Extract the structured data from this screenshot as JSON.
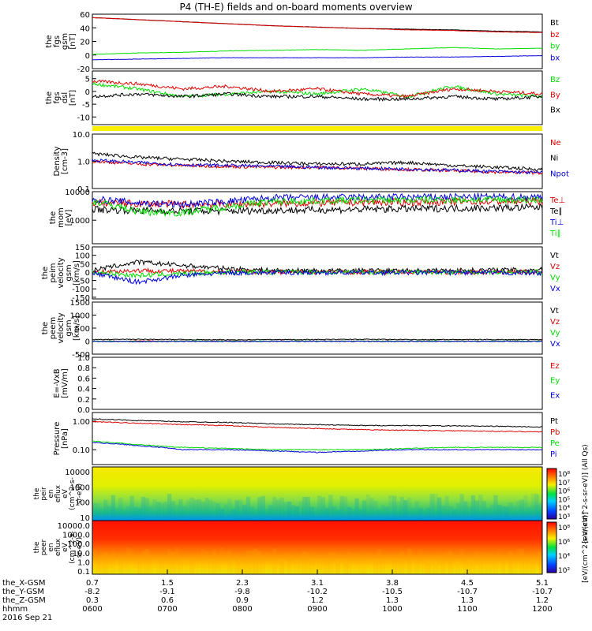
{
  "title": "P4 (TH-E) fields and on-board moments overview",
  "chart_data": {
    "type": "line",
    "title": "P4 (TH-E) fields and on-board moments overview",
    "x_axis": {
      "rows": [
        {
          "label": "the_X-GSM",
          "values": [
            "0.7",
            "1.5",
            "2.3",
            "3.1",
            "3.8",
            "4.5",
            "5.1"
          ]
        },
        {
          "label": "the_Y-GSM",
          "values": [
            "-8.2",
            "-9.1",
            "-9.8",
            "-10.2",
            "-10.5",
            "-10.7",
            "-10.7"
          ]
        },
        {
          "label": "the_Z-GSM",
          "values": [
            "0.3",
            "0.6",
            "0.9",
            "1.2",
            "1.3",
            "1.3",
            "1.2"
          ]
        },
        {
          "label": "hhmm",
          "values": [
            "0600",
            "0700",
            "0800",
            "0900",
            "1000",
            "1100",
            "1200"
          ]
        }
      ],
      "date": "2016 Sep 21"
    },
    "panels": [
      {
        "id": "fgs_gsm",
        "ylabel": [
          "the",
          "fgs",
          "gsm",
          "[nT]"
        ],
        "ylim": [
          -20,
          60
        ],
        "log": false,
        "ticks": [
          "60",
          "40",
          "20",
          "0",
          "-20"
        ],
        "series": [
          {
            "name": "Bt",
            "color": "#000000",
            "values": [
              55,
              52,
              49,
              46,
              43,
              41,
              39,
              38,
              37,
              35,
              34
            ]
          },
          {
            "name": "bz",
            "color": "#dd0000",
            "values": [
              55,
              52,
              49,
              46,
              43,
              41,
              39,
              37,
              36,
              34,
              33
            ]
          },
          {
            "name": "by",
            "color": "#00dd00",
            "values": [
              1,
              3,
              4,
              6,
              7,
              8,
              7,
              9,
              11,
              9,
              10
            ]
          },
          {
            "name": "bx",
            "color": "#0000dd",
            "values": [
              -7,
              -6,
              -5,
              -4,
              -4,
              -4,
              -4,
              -3,
              -3,
              -2,
              -1
            ]
          }
        ]
      },
      {
        "id": "fgs_dsl",
        "ylabel": [
          "the",
          "fgs",
          "dsl",
          "[nT]"
        ],
        "ylim": [
          -13,
          8
        ],
        "log": false,
        "ticks": [
          "5",
          "0",
          "-5",
          "-10"
        ],
        "series": [
          {
            "name": "Bz",
            "color": "#00dd00",
            "values": [
              3,
              1,
              -2,
              -1,
              0,
              -1,
              1,
              -2,
              2,
              -1,
              -2
            ]
          },
          {
            "name": "By",
            "color": "#dd0000",
            "values": [
              4,
              3,
              1,
              2,
              0,
              1,
              -1,
              -2,
              1,
              0,
              -1
            ]
          },
          {
            "name": "Bx",
            "color": "#000000",
            "values": [
              -2,
              -1,
              -2,
              -1,
              -2,
              -2,
              -3,
              -3,
              -2,
              -3,
              -2
            ]
          }
        ]
      },
      {
        "id": "density",
        "ylabel": [
          "Density",
          "[cm-3]"
        ],
        "ylim": [
          0.1,
          10
        ],
        "log": true,
        "ticks": [
          "10.0",
          "1.0",
          "0.1"
        ],
        "series": [
          {
            "name": "Ne",
            "color": "#dd0000",
            "values": [
              1.0,
              0.8,
              0.7,
              0.65,
              0.6,
              0.6,
              0.55,
              0.5,
              0.45,
              0.4,
              0.38
            ]
          },
          {
            "name": "Ni",
            "color": "#000000",
            "values": [
              1.9,
              1.4,
              1.2,
              1.0,
              0.9,
              0.8,
              0.8,
              0.9,
              0.7,
              0.6,
              0.5
            ]
          },
          {
            "name": "Npot",
            "color": "#0000dd",
            "values": [
              1.1,
              0.9,
              0.75,
              0.7,
              0.65,
              0.6,
              0.55,
              0.52,
              0.47,
              0.42,
              0.38
            ]
          }
        ]
      },
      {
        "id": "mom",
        "ylabel": [
          "the",
          "mom",
          "[eV]"
        ],
        "ylim": [
          150,
          10000
        ],
        "log": true,
        "ticks": [
          "10000",
          "1000"
        ],
        "series": [
          {
            "name": "Te⊥",
            "color": "#dd0000",
            "values": [
              4200,
              3800,
              3600,
              3600,
              3800,
              4000,
              4200,
              4300,
              4400,
              4500,
              4600
            ]
          },
          {
            "name": "Te∥",
            "color": "#000000",
            "values": [
              2400,
              2200,
              2100,
              2100,
              2200,
              2300,
              2400,
              2500,
              2600,
              2700,
              2800
            ]
          },
          {
            "name": "Ti⊥",
            "color": "#0000dd",
            "values": [
              5500,
              4000,
              3500,
              4500,
              6000,
              6200,
              6300,
              6400,
              6500,
              6500,
              6500
            ]
          },
          {
            "name": "Ti∥",
            "color": "#00dd00",
            "values": [
              4500,
              2000,
              1800,
              3000,
              4500,
              4800,
              5000,
              5100,
              5200,
              5200,
              5200
            ]
          }
        ]
      },
      {
        "id": "peim",
        "ylabel": [
          "the",
          "peim",
          "velocity",
          "gsm",
          "[km/s]"
        ],
        "ylim": [
          -160,
          150
        ],
        "log": false,
        "ticks": [
          "150",
          "100",
          "50",
          "0",
          "-50",
          "-100",
          "-150"
        ],
        "series": [
          {
            "name": "Vt",
            "color": "#000000",
            "values": [
              10,
              60,
              40,
              20,
              10,
              8,
              8,
              8,
              10,
              12,
              14
            ]
          },
          {
            "name": "Vz",
            "color": "#dd0000",
            "values": [
              0,
              10,
              5,
              2,
              0,
              0,
              0,
              0,
              0,
              0,
              0
            ]
          },
          {
            "name": "Vy",
            "color": "#00dd00",
            "values": [
              0,
              -20,
              -10,
              0,
              0,
              0,
              0,
              0,
              0,
              0,
              0
            ]
          },
          {
            "name": "Vx",
            "color": "#0000dd",
            "values": [
              -5,
              -60,
              -20,
              -5,
              -3,
              -3,
              -3,
              -3,
              -3,
              -5,
              -5
            ]
          }
        ]
      },
      {
        "id": "peem",
        "ylabel": [
          "the",
          "peem",
          "velocity",
          "gsm",
          "[km/s]"
        ],
        "ylim": [
          -500,
          1500
        ],
        "log": false,
        "ticks": [
          "1500",
          "1000",
          "500",
          "0",
          "-500"
        ],
        "series": [
          {
            "name": "Vt",
            "color": "#000000",
            "values": [
              60,
              70,
              60,
              50,
              60,
              60,
              70,
              60,
              60,
              60,
              60
            ]
          },
          {
            "name": "Vz",
            "color": "#dd0000",
            "values": [
              0,
              10,
              0,
              0,
              0,
              0,
              0,
              0,
              0,
              0,
              0
            ]
          },
          {
            "name": "Vy",
            "color": "#00dd00",
            "values": [
              0,
              -10,
              0,
              0,
              0,
              0,
              0,
              0,
              0,
              0,
              0
            ]
          },
          {
            "name": "Vx",
            "color": "#0000dd",
            "values": [
              -10,
              -20,
              -10,
              -10,
              -10,
              -10,
              -10,
              -10,
              -10,
              -10,
              -10
            ]
          }
        ]
      },
      {
        "id": "efield",
        "ylabel": [
          "E=-VxB",
          "[mV/m]"
        ],
        "ylim": [
          0,
          1
        ],
        "log": false,
        "ticks": [
          "1.0",
          "0.8",
          "0.6",
          "0.4",
          "0.2",
          "0.0"
        ],
        "series": [
          {
            "name": "Ez",
            "color": "#dd0000",
            "values": []
          },
          {
            "name": "Ey",
            "color": "#00dd00",
            "values": []
          },
          {
            "name": "Ex",
            "color": "#0000dd",
            "values": []
          }
        ]
      },
      {
        "id": "pressure",
        "ylabel": [
          "Pressure",
          "[nPa]"
        ],
        "ylim": [
          0.03,
          2
        ],
        "log": true,
        "ticks": [
          "1.00",
          "0.10"
        ],
        "series": [
          {
            "name": "Pt",
            "color": "#000000",
            "values": [
              1.2,
              1.05,
              0.95,
              0.9,
              0.8,
              0.75,
              0.7,
              0.7,
              0.68,
              0.66,
              0.62
            ]
          },
          {
            "name": "Pb",
            "color": "#dd0000",
            "values": [
              0.95,
              0.85,
              0.75,
              0.7,
              0.6,
              0.55,
              0.5,
              0.48,
              0.46,
              0.44,
              0.42
            ]
          },
          {
            "name": "Pe",
            "color": "#00dd00",
            "values": [
              0.2,
              0.15,
              0.12,
              0.11,
              0.1,
              0.1,
              0.1,
              0.11,
              0.12,
              0.12,
              0.12
            ]
          },
          {
            "name": "Pi",
            "color": "#0000dd",
            "values": [
              0.18,
              0.14,
              0.1,
              0.1,
              0.09,
              0.08,
              0.09,
              0.1,
              0.1,
              0.1,
              0.1
            ]
          }
        ]
      }
    ],
    "spectrograms": [
      {
        "id": "peir",
        "ylabel": [
          "the",
          "peir",
          "en",
          "eflux",
          "eV",
          "(cm^2-s-",
          "sr-eV)"
        ],
        "ticks": [
          "10000",
          "1000",
          "100",
          "10"
        ],
        "colorbar_ticks": [
          "10⁸",
          "10⁷",
          "10⁶",
          "10⁵",
          "10⁴",
          "10³"
        ],
        "colorbar_label": "[eV/(cm^2-s-sr-eV)] (All Qs)"
      },
      {
        "id": "peer",
        "ylabel": [
          "the",
          "peer",
          "en",
          "eflux",
          "eV",
          "(cm^2-s-",
          "sr-eV)"
        ],
        "ticks": [
          "10000.0",
          "1000.0",
          "100.0",
          "10.0",
          "1.0",
          "0.1"
        ],
        "colorbar_ticks": [
          "10⁸",
          "10⁶",
          "10⁴",
          "10²"
        ],
        "colorbar_label": "[eV/(cm^2-s-sr-eV)]"
      }
    ]
  }
}
